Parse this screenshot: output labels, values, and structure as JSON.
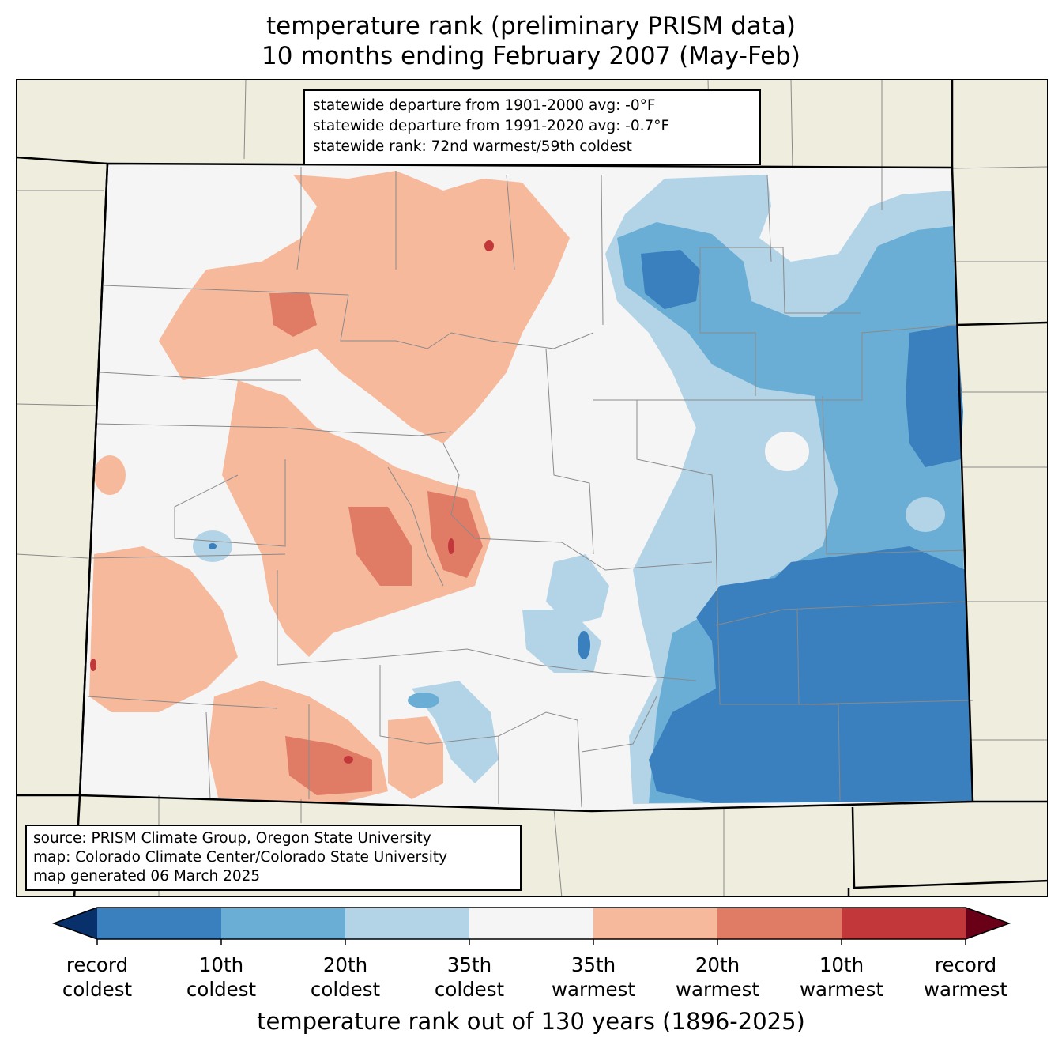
{
  "title": {
    "line1": "temperature rank (preliminary PRISM data)",
    "line2": "10 months ending February 2007 (May-Feb)"
  },
  "stats": {
    "line1": "statewide departure from 1901-2000 avg: -0°F",
    "line2": "statewide departure from 1991-2020 avg: -0.7°F",
    "line3": "statewide rank: 72nd warmest/59th coldest"
  },
  "source": {
    "line1": "source: PRISM Climate Group, Oregon State University",
    "line2": "map: Colorado Climate Center/Colorado State University",
    "line3": "map generated 06 March 2025"
  },
  "colorbar": {
    "title": "temperature rank out of 130 years (1896-2025)",
    "colors": [
      "#08306b",
      "#3a7fbe",
      "#6aaed6",
      "#b3d4e7",
      "#f5f5f5",
      "#f7b99c",
      "#e07c66",
      "#c2383a",
      "#6a0018"
    ],
    "ticks": [
      {
        "line1": "record",
        "line2": "coldest"
      },
      {
        "line1": "10th",
        "line2": "coldest"
      },
      {
        "line1": "20th",
        "line2": "coldest"
      },
      {
        "line1": "35th",
        "line2": "coldest"
      },
      {
        "line1": "35th",
        "line2": "warmest"
      },
      {
        "line1": "20th",
        "line2": "warmest"
      },
      {
        "line1": "10th",
        "line2": "warmest"
      },
      {
        "line1": "record",
        "line2": "warmest"
      }
    ]
  },
  "map_colors": {
    "background": "#efeddd",
    "state_fill": "#f5f5f5",
    "county_line": "#8a8a8a",
    "state_line": "#000000"
  }
}
